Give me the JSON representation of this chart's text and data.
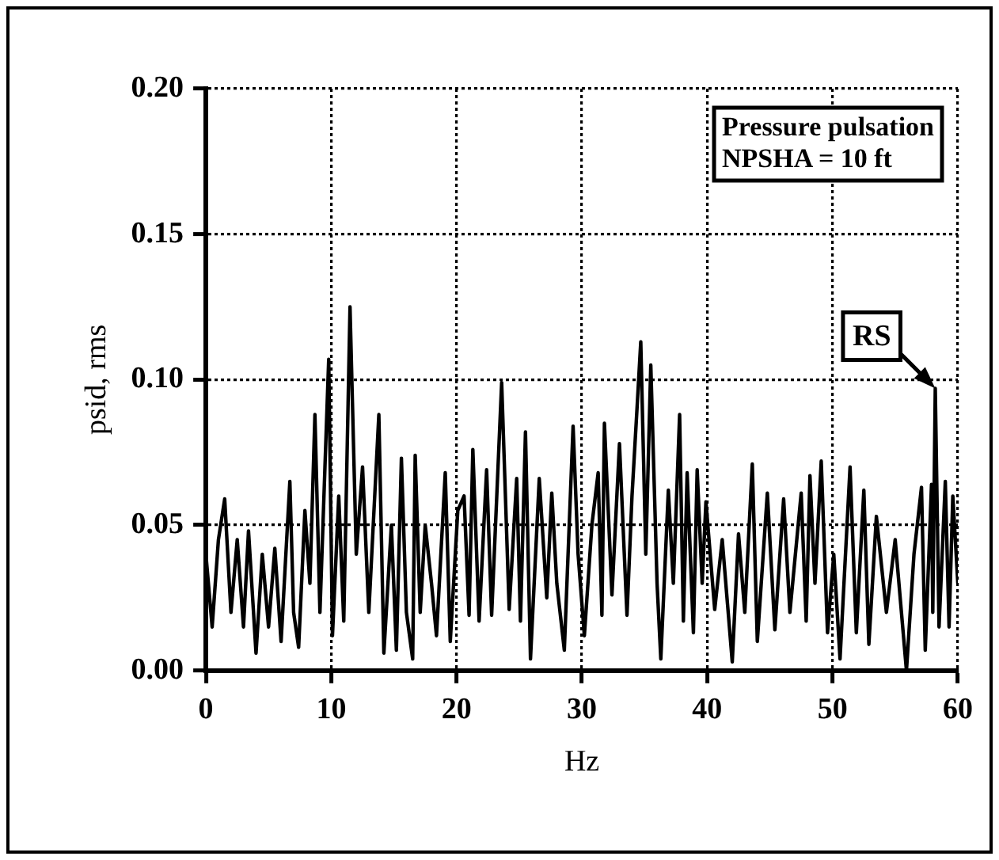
{
  "chart_data": {
    "type": "line",
    "xlabel": "Hz",
    "ylabel": "psid, rms",
    "xlim": [
      0,
      60
    ],
    "xticks": [
      0,
      10,
      20,
      30,
      40,
      50,
      60
    ],
    "ylim": [
      0,
      0.2
    ],
    "yticks": [
      {
        "value": 0,
        "label": "0.00"
      },
      {
        "value": 0.05,
        "label": "0.05"
      },
      {
        "value": 0.1,
        "label": "0.10"
      },
      {
        "value": 0.15,
        "label": "0.15"
      },
      {
        "value": 0.2,
        "label": "0.20"
      }
    ],
    "grid": true,
    "legend": false,
    "marker": "none",
    "line_style": "solid",
    "annotations": [
      "Pressure pulsation\nNPSHA = 10 ft",
      {
        "text": "RS",
        "x": 58.2,
        "y": 0.097
      }
    ],
    "series": [
      {
        "color": "#000000",
        "x": [
          0,
          0.5,
          1.0,
          1.5,
          2.0,
          2.5,
          3.0,
          3.4,
          4.0,
          4.5,
          5.0,
          5.5,
          6.0,
          6.7,
          7.0,
          7.4,
          7.9,
          8.3,
          8.7,
          9.1,
          9.5,
          9.8,
          10.1,
          10.6,
          11.0,
          11.5,
          12.0,
          12.5,
          13.0,
          13.8,
          14.2,
          14.8,
          15.2,
          15.6,
          16.0,
          16.5,
          16.7,
          17.1,
          17.5,
          18.0,
          18.4,
          19.1,
          19.5,
          20.1,
          20.6,
          21.0,
          21.3,
          21.8,
          22.4,
          22.8,
          23.6,
          24.2,
          24.8,
          25.1,
          25.5,
          25.9,
          26.6,
          27.2,
          27.6,
          28.0,
          28.6,
          29.3,
          29.7,
          30.2,
          30.8,
          31.3,
          31.6,
          31.8,
          32.4,
          33.0,
          33.6,
          34.0,
          34.4,
          34.7,
          35.1,
          35.5,
          36.0,
          36.3,
          36.9,
          37.3,
          37.8,
          38.1,
          38.4,
          38.9,
          39.2,
          39.6,
          39.9,
          40.6,
          41.2,
          42.0,
          42.5,
          43.0,
          43.6,
          44.0,
          44.8,
          45.4,
          46.1,
          46.6,
          47.5,
          47.9,
          48.2,
          48.6,
          49.1,
          49.6,
          50.1,
          50.6,
          51.4,
          51.9,
          52.5,
          52.9,
          53.5,
          54.3,
          55.0,
          55.9,
          56.5,
          57.1,
          57.4,
          57.9,
          58.0,
          58.2,
          58.5,
          59.0,
          59.3,
          59.6,
          60.0
        ],
        "values": [
          0.04,
          0.015,
          0.045,
          0.059,
          0.02,
          0.045,
          0.015,
          0.048,
          0.006,
          0.04,
          0.015,
          0.042,
          0.01,
          0.065,
          0.02,
          0.008,
          0.055,
          0.03,
          0.088,
          0.02,
          0.07,
          0.107,
          0.012,
          0.06,
          0.017,
          0.125,
          0.04,
          0.07,
          0.02,
          0.088,
          0.006,
          0.05,
          0.007,
          0.073,
          0.02,
          0.004,
          0.074,
          0.02,
          0.05,
          0.03,
          0.012,
          0.068,
          0.01,
          0.055,
          0.06,
          0.019,
          0.076,
          0.017,
          0.069,
          0.019,
          0.099,
          0.021,
          0.066,
          0.017,
          0.082,
          0.004,
          0.066,
          0.025,
          0.061,
          0.03,
          0.007,
          0.084,
          0.04,
          0.012,
          0.05,
          0.068,
          0.019,
          0.085,
          0.026,
          0.078,
          0.019,
          0.06,
          0.09,
          0.113,
          0.04,
          0.105,
          0.03,
          0.004,
          0.062,
          0.03,
          0.088,
          0.017,
          0.068,
          0.013,
          0.069,
          0.03,
          0.058,
          0.021,
          0.045,
          0.003,
          0.047,
          0.02,
          0.071,
          0.01,
          0.061,
          0.014,
          0.059,
          0.02,
          0.061,
          0.017,
          0.067,
          0.03,
          0.072,
          0.013,
          0.04,
          0.004,
          0.07,
          0.013,
          0.062,
          0.009,
          0.053,
          0.02,
          0.045,
          0.0,
          0.04,
          0.063,
          0.007,
          0.064,
          0.02,
          0.097,
          0.015,
          0.065,
          0.015,
          0.06,
          0.03
        ]
      }
    ]
  }
}
